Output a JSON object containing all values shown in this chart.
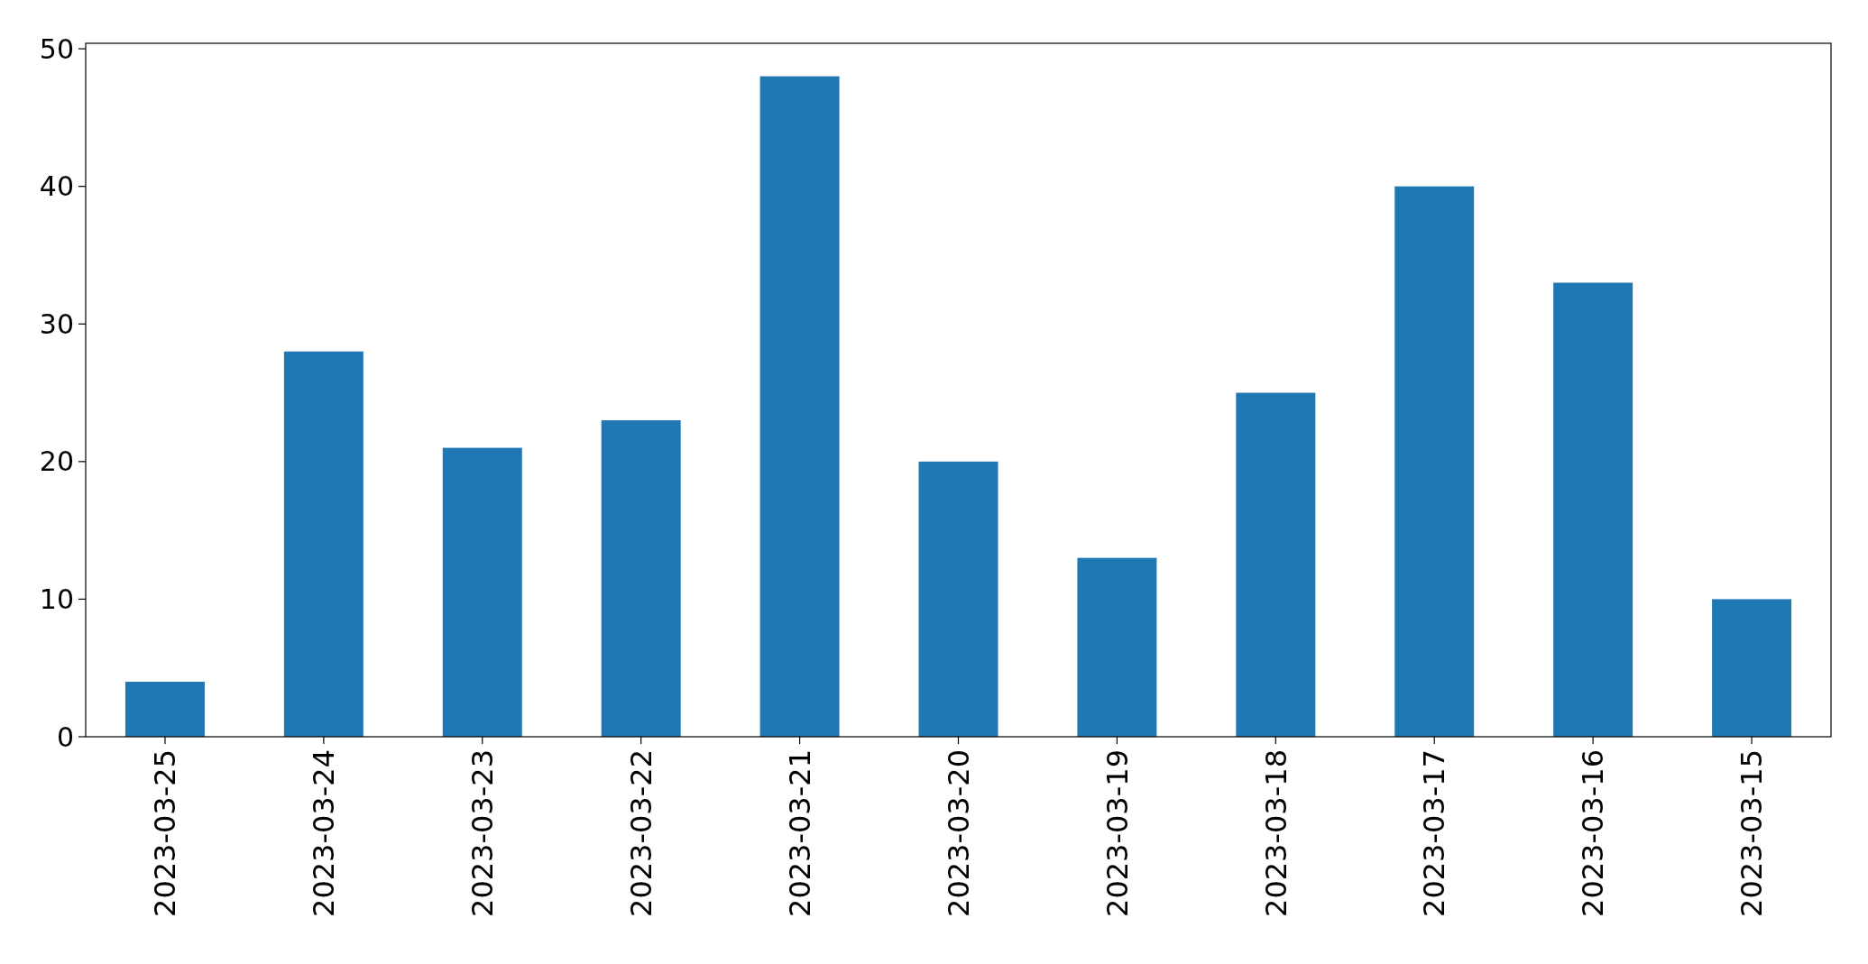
{
  "chart_data": {
    "type": "bar",
    "categories": [
      "2023-03-25",
      "2023-03-24",
      "2023-03-23",
      "2023-03-22",
      "2023-03-21",
      "2023-03-20",
      "2023-03-19",
      "2023-03-18",
      "2023-03-17",
      "2023-03-16",
      "2023-03-15"
    ],
    "values": [
      4,
      28,
      21,
      23,
      48,
      20,
      13,
      25,
      40,
      33,
      10
    ],
    "color": "#1f77b4",
    "ylim": [
      0,
      50.4
    ],
    "yticks": [
      0,
      10,
      20,
      30,
      40,
      50
    ],
    "grid": false
  }
}
